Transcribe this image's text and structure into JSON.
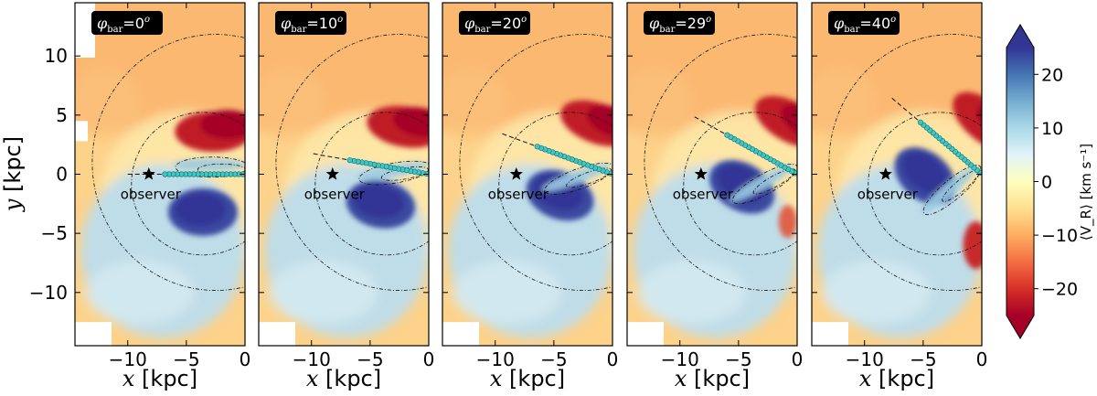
{
  "chart_data": {
    "type": "heatmap",
    "description_labels": {
      "panel_prefix": "φ",
      "panel_prefix_sub": "bar",
      "eq": "=",
      "deg": "o"
    },
    "panels": [
      {
        "phi_value": "0",
        "phi_deg": 0,
        "phi_label": "=0"
      },
      {
        "phi_value": "10",
        "phi_deg": 10,
        "phi_label": "=10"
      },
      {
        "phi_value": "20",
        "phi_deg": 20,
        "phi_label": "=20"
      },
      {
        "phi_value": "29",
        "phi_deg": 29,
        "phi_label": "=29"
      },
      {
        "phi_value": "40",
        "phi_deg": 40,
        "phi_label": "=40"
      }
    ],
    "xlabel": "x [kpc]",
    "ylabel": "y [kpc]",
    "xlim": [
      -14.5,
      0
    ],
    "ylim": [
      -14.5,
      14.5
    ],
    "xticks": [
      -10,
      -5,
      0
    ],
    "xtick_labels": [
      "−10",
      "−5",
      "0"
    ],
    "yticks": [
      10,
      5,
      0,
      -5,
      -10
    ],
    "ytick_labels": [
      "10",
      "5",
      "0",
      "−5",
      "−10"
    ],
    "observer": {
      "x": -8.2,
      "y": 0,
      "label": "observer"
    },
    "bar_half_length_kpc": 7,
    "colorbar": {
      "label": "⟨V_R⟩ [km s⁻¹]",
      "vmin": -25,
      "vmax": 25,
      "ticks": [
        20,
        10,
        0,
        -10,
        -20
      ],
      "tick_labels": [
        "20",
        "10",
        "0",
        "−10",
        "−20"
      ],
      "cmap": "RdYlBu"
    }
  }
}
